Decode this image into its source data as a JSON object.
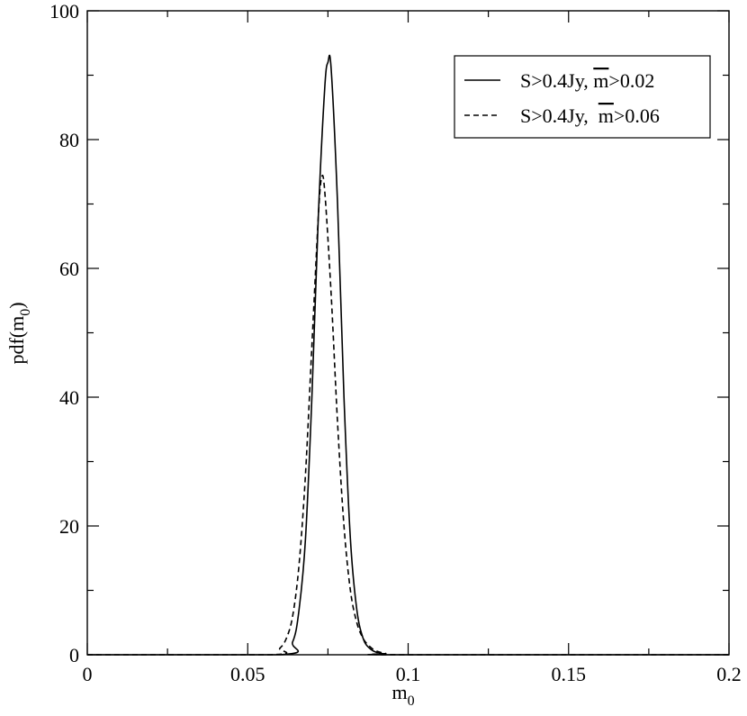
{
  "chart_data": {
    "type": "line",
    "xlabel": "m",
    "xlabel_sub": "0",
    "ylabel": "pdf(m",
    "ylabel_sub": "0",
    "ylabel_close": ")",
    "xlim": [
      0,
      0.2
    ],
    "ylim": [
      0,
      100
    ],
    "xticks": [
      0,
      0.05,
      0.1,
      0.15,
      0.2
    ],
    "xtick_labels": [
      "0",
      "0.05",
      "0.1",
      "0.15",
      "0.2"
    ],
    "yticks": [
      0,
      20,
      40,
      60,
      80,
      100
    ],
    "ytick_labels": [
      "0",
      "20",
      "40",
      "60",
      "80",
      "100"
    ],
    "grid": false,
    "legend_position": "top-right",
    "series": [
      {
        "name": "S>0.4Jy, m>0.02",
        "legend_prefix": "S>0.4Jy, ",
        "legend_overline": "m",
        "legend_suffix": ">0.02",
        "style": "solid",
        "x": [
          0.06,
          0.064,
          0.066,
          0.068,
          0.07,
          0.072,
          0.074,
          0.075,
          0.076,
          0.078,
          0.08,
          0.082,
          0.084,
          0.086,
          0.088,
          0.09,
          0.093,
          0.096
        ],
        "y": [
          0,
          2,
          7,
          18,
          40,
          68,
          88,
          92,
          91,
          70,
          40,
          18,
          7,
          2.5,
          1,
          0.4,
          0.1,
          0
        ]
      },
      {
        "name": "S>0.4Jy, m>0.06",
        "legend_prefix": "S>0.4Jy,  ",
        "legend_overline": "m",
        "legend_suffix": ">0.06",
        "style": "dashed",
        "x": [
          0.057,
          0.06,
          0.062,
          0.064,
          0.066,
          0.068,
          0.07,
          0.072,
          0.073,
          0.074,
          0.076,
          0.078,
          0.08,
          0.082,
          0.084,
          0.086,
          0.088,
          0.09,
          0.093,
          0.097
        ],
        "y": [
          0,
          1,
          2.5,
          6,
          14,
          28,
          48,
          68,
          74,
          72,
          56,
          36,
          20,
          10,
          5,
          2.5,
          1.3,
          0.6,
          0.2,
          0
        ]
      }
    ]
  }
}
